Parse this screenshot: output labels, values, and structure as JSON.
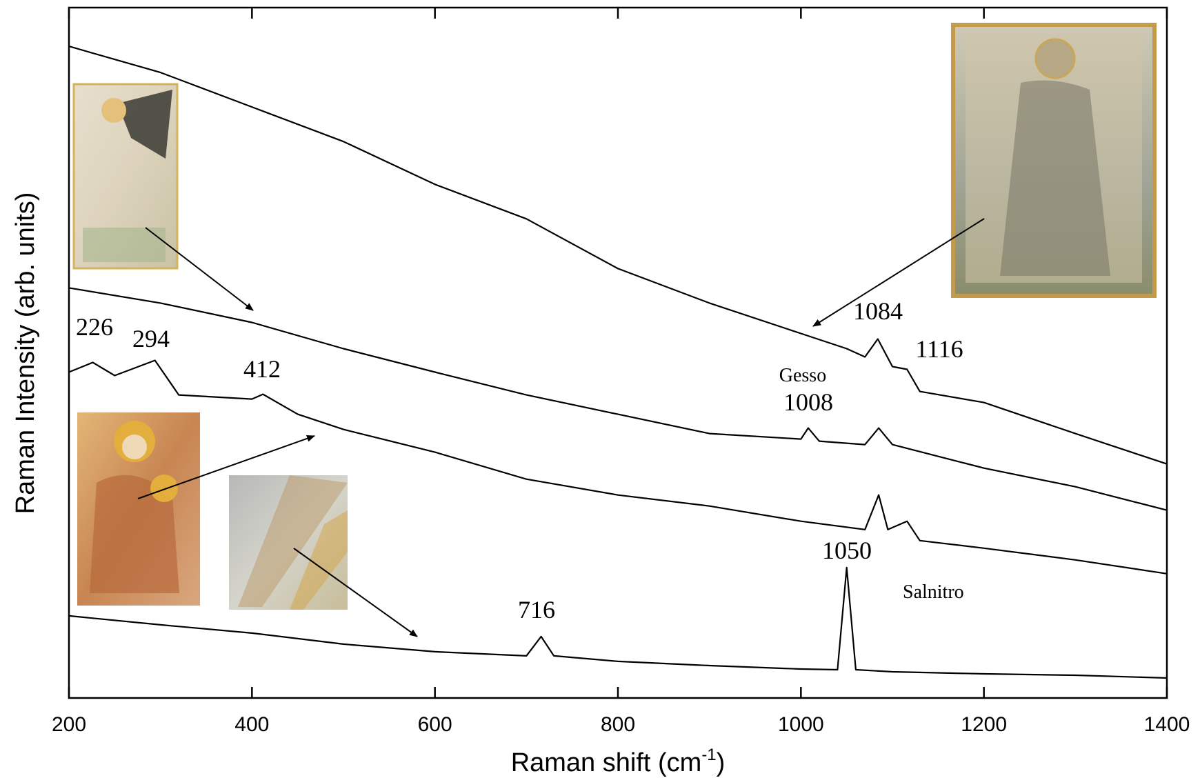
{
  "chart_data": {
    "type": "line",
    "y_label": "Raman Intensity (arb. units)",
    "x_label": "Raman shift (cm",
    "x_label_sup": "-1",
    "x_label_end": ")",
    "xlim": [
      200,
      1400
    ],
    "xticks": [
      200,
      400,
      600,
      800,
      1000,
      1200,
      1400
    ],
    "ylim": [
      0,
      100
    ],
    "series": [
      {
        "color": "#000000",
        "x": [
          200,
          300,
          400,
          500,
          600,
          700,
          800,
          900,
          1000,
          1050,
          1070,
          1084,
          1100,
          1116,
          1130,
          1200,
          1300,
          1400
        ],
        "values": [
          94.4,
          90.6,
          85.6,
          80.6,
          74.4,
          69.4,
          62.2,
          57.2,
          52.8,
          50.6,
          49.4,
          52,
          48,
          47.6,
          44.4,
          42.8,
          38.3,
          33.9
        ]
      },
      {
        "color": "#000000",
        "x": [
          200,
          300,
          400,
          500,
          600,
          700,
          800,
          900,
          1000,
          1008,
          1020,
          1070,
          1085,
          1100,
          1200,
          1300,
          1400
        ],
        "values": [
          59.4,
          57.2,
          54.4,
          50.6,
          47.2,
          43.9,
          41.1,
          38.3,
          37.5,
          39.1,
          37.2,
          36.7,
          39.1,
          36.7,
          33.3,
          30.6,
          27.2
        ]
      },
      {
        "color": "#000000",
        "x": [
          200,
          226,
          250,
          294,
          320,
          400,
          412,
          450,
          500,
          600,
          700,
          800,
          900,
          1000,
          1070,
          1085,
          1095,
          1116,
          1130,
          1200,
          1300,
          1400
        ],
        "values": [
          47.2,
          48.6,
          46.7,
          48.9,
          43.9,
          43.3,
          44,
          41.1,
          38.9,
          35.6,
          31.7,
          29.4,
          27.8,
          25.6,
          24.4,
          29.4,
          24.4,
          25.6,
          22.8,
          21.7,
          20,
          18
        ]
      },
      {
        "color": "#000000",
        "x": [
          200,
          300,
          400,
          500,
          600,
          700,
          716,
          730,
          800,
          900,
          1000,
          1040,
          1050,
          1060,
          1100,
          1200,
          1300,
          1400
        ],
        "values": [
          11.9,
          10.6,
          9.4,
          7.8,
          6.7,
          6.1,
          8.9,
          6.1,
          5.3,
          4.7,
          4.2,
          4.1,
          18.9,
          4.1,
          3.8,
          3.5,
          3.3,
          2.9
        ]
      }
    ],
    "annotations": [
      "226",
      "294",
      "412",
      "Gesso",
      "1008",
      "1084",
      "1116",
      "1050",
      "Salnitro",
      "716"
    ]
  }
}
